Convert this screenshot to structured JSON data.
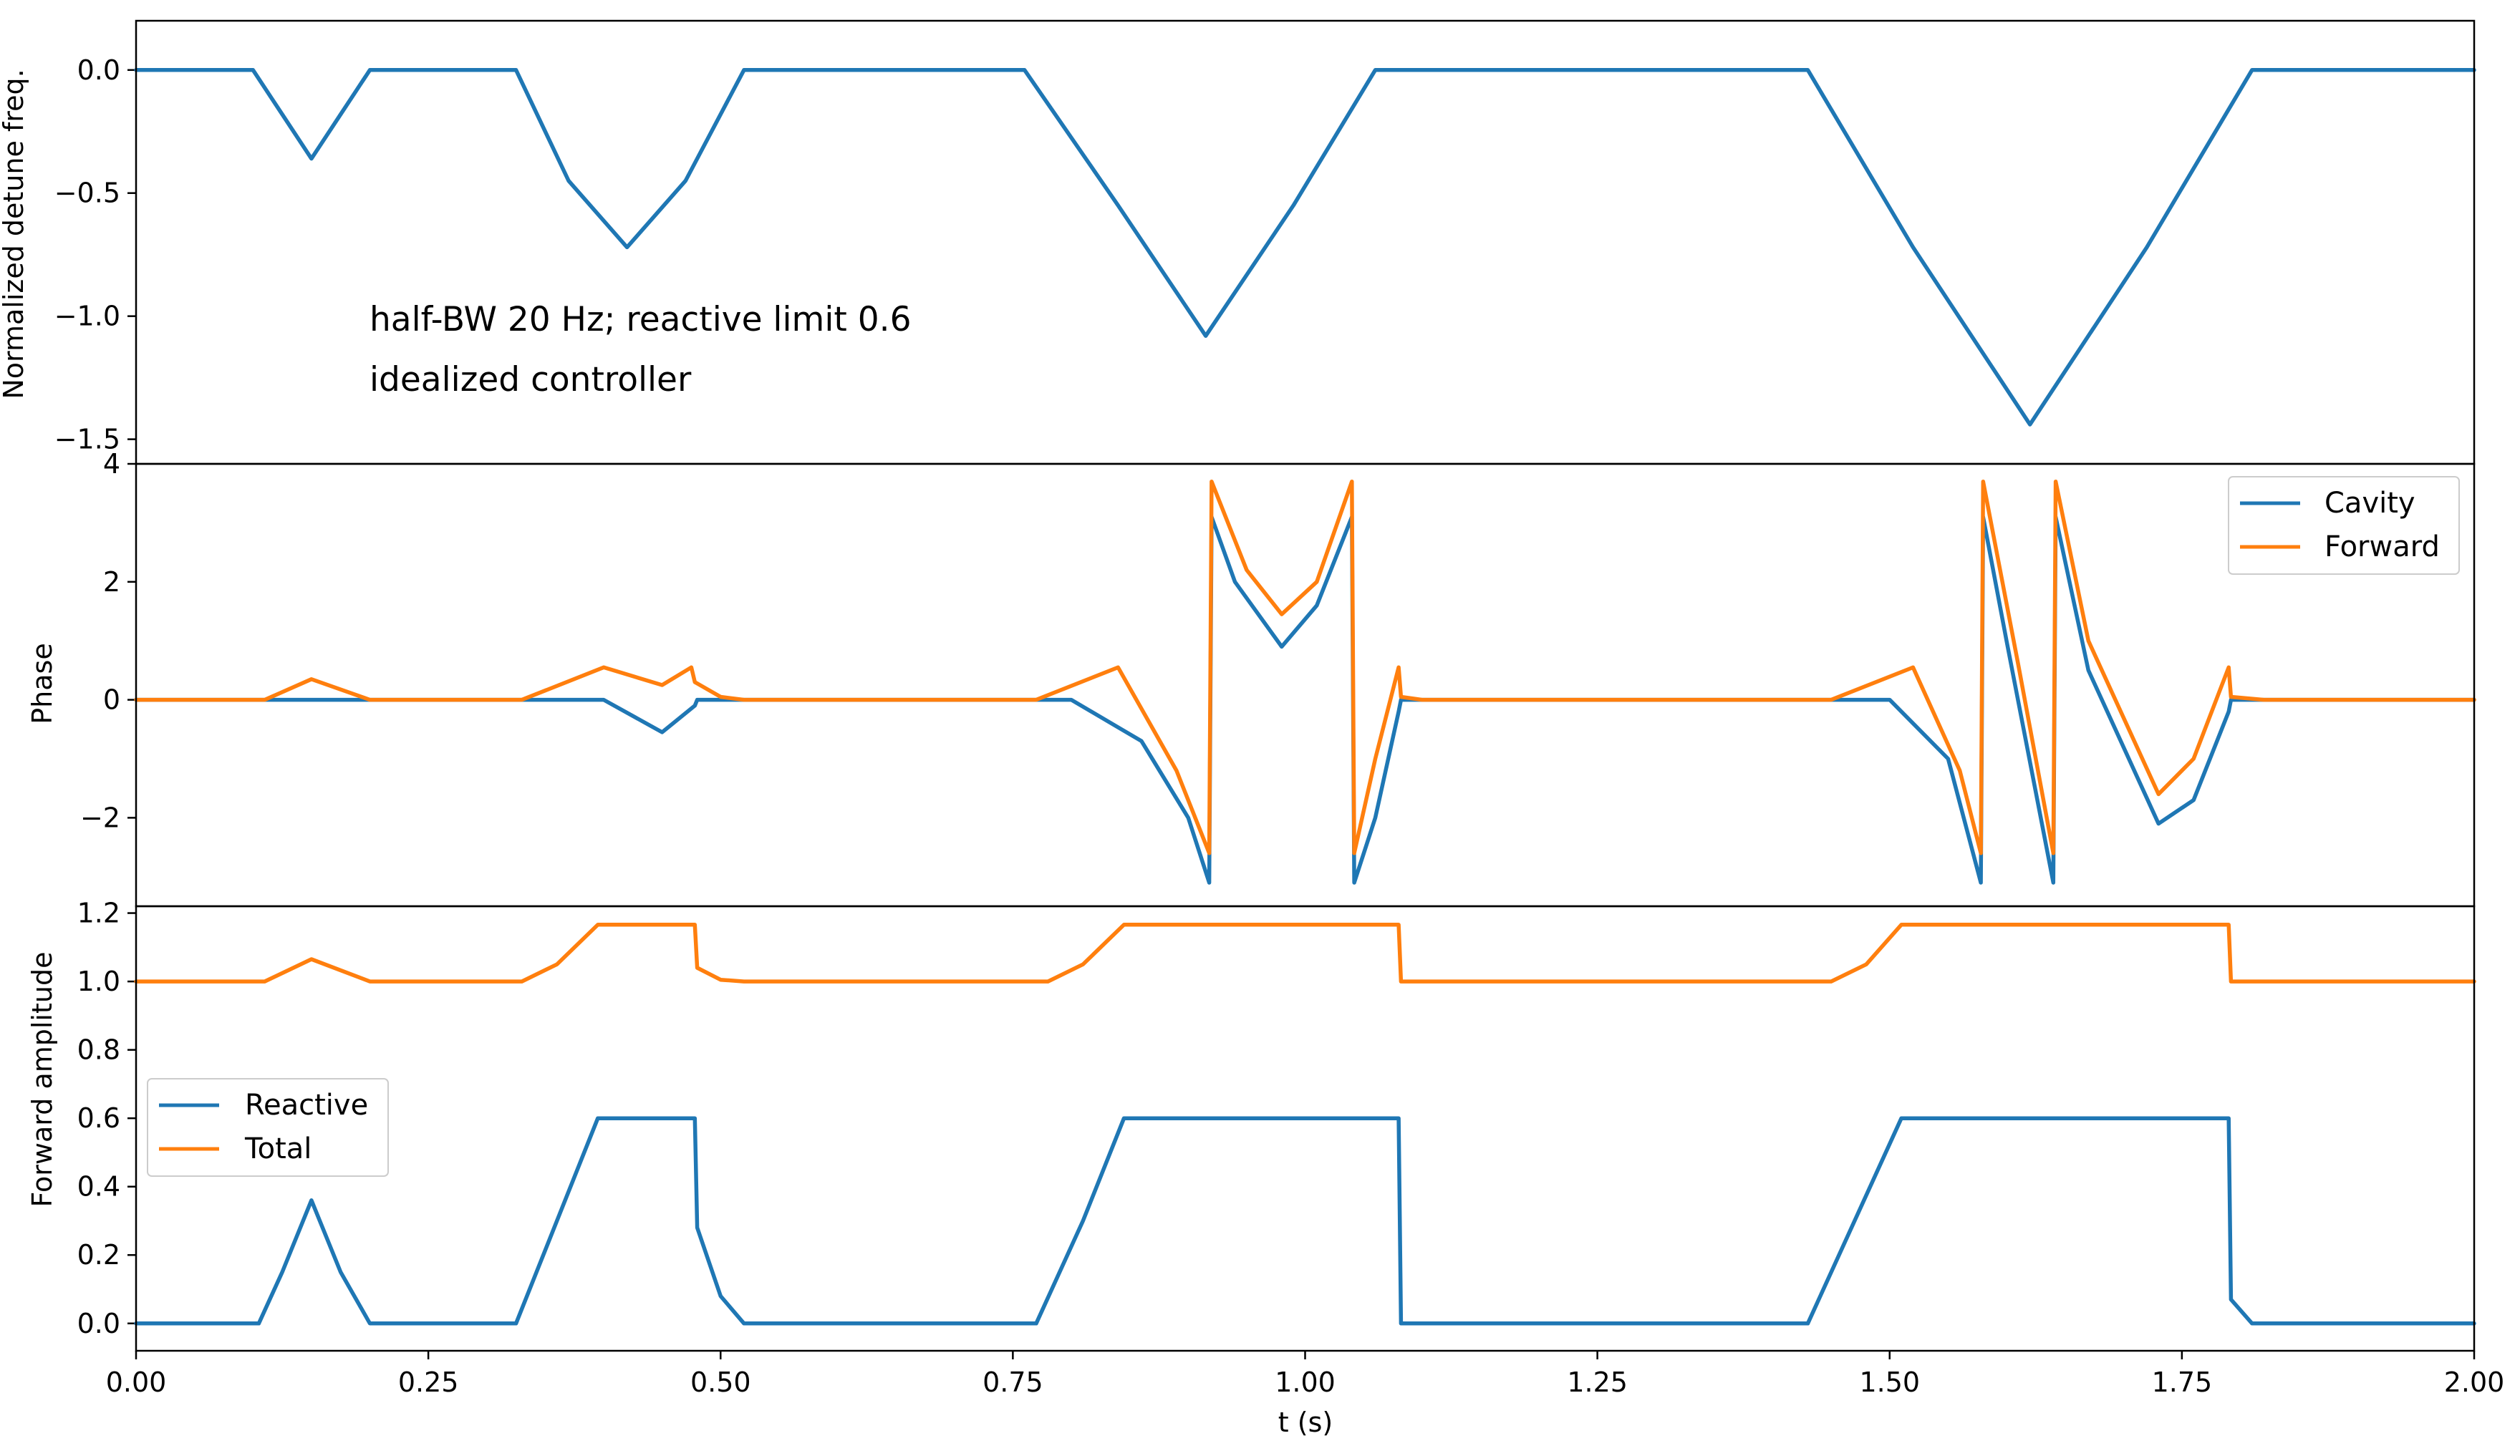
{
  "chart_data": [
    {
      "type": "line",
      "ylabel": "Normalized detune freq.",
      "xlim": [
        0,
        2
      ],
      "ylim": [
        -1.6,
        0.2
      ],
      "yticks": [
        0.0,
        -0.5,
        -1.0,
        -1.5
      ],
      "ytick_labels": [
        "0.0",
        "−0.5",
        "−1.0",
        "−1.5"
      ],
      "annotations": [
        "half-BW 20 Hz; reactive limit 0.6",
        "idealized controller"
      ],
      "series": [
        {
          "color": "#1f77b4",
          "points": [
            [
              0,
              0
            ],
            [
              0.1,
              0
            ],
            [
              0.125,
              -0.18
            ],
            [
              0.15,
              -0.36
            ],
            [
              0.175,
              -0.18
            ],
            [
              0.2,
              0
            ],
            [
              0.325,
              0
            ],
            [
              0.37,
              -0.45
            ],
            [
              0.42,
              -0.72
            ],
            [
              0.47,
              -0.45
            ],
            [
              0.52,
              0
            ],
            [
              0.76,
              0
            ],
            [
              0.84,
              -0.55
            ],
            [
              0.915,
              -1.08
            ],
            [
              0.99,
              -0.55
            ],
            [
              1.06,
              0
            ],
            [
              1.43,
              0
            ],
            [
              1.52,
              -0.72
            ],
            [
              1.62,
              -1.44
            ],
            [
              1.72,
              -0.72
            ],
            [
              1.81,
              0
            ],
            [
              2,
              0
            ]
          ]
        }
      ]
    },
    {
      "type": "line",
      "ylabel": "Phase",
      "xlim": [
        0,
        2
      ],
      "ylim": [
        -3.5,
        4
      ],
      "yticks": [
        4,
        2,
        0,
        -2
      ],
      "ytick_labels": [
        "4",
        "2",
        "0",
        "−2"
      ],
      "legend": "top-right",
      "series": [
        {
          "name": "Cavity",
          "color": "#1f77b4",
          "points": [
            [
              0,
              0
            ],
            [
              0.4,
              0
            ],
            [
              0.45,
              -0.55
            ],
            [
              0.478,
              -0.1
            ],
            [
              0.48,
              0
            ],
            [
              0.8,
              0
            ],
            [
              0.86,
              -0.7
            ],
            [
              0.9,
              -2.0
            ],
            [
              0.918,
              -3.1
            ],
            [
              0.92,
              3.1
            ],
            [
              0.94,
              2.0
            ],
            [
              0.98,
              0.9
            ],
            [
              1.01,
              1.6
            ],
            [
              1.04,
              3.1
            ],
            [
              1.042,
              -3.1
            ],
            [
              1.06,
              -2.0
            ],
            [
              1.08,
              -0.2
            ],
            [
              1.082,
              0
            ],
            [
              1.5,
              0
            ],
            [
              1.55,
              -1.0
            ],
            [
              1.578,
              -3.1
            ],
            [
              1.58,
              3.1
            ],
            [
              1.6,
              1.0
            ],
            [
              1.64,
              -3.1
            ],
            [
              1.642,
              3.1
            ],
            [
              1.67,
              0.5
            ],
            [
              1.73,
              -2.1
            ],
            [
              1.76,
              -1.7
            ],
            [
              1.79,
              -0.2
            ],
            [
              1.792,
              0
            ],
            [
              2,
              0
            ]
          ]
        },
        {
          "name": "Forward",
          "color": "#ff7f0e",
          "points": [
            [
              0,
              0
            ],
            [
              0.11,
              0
            ],
            [
              0.15,
              0.35
            ],
            [
              0.2,
              0
            ],
            [
              0.33,
              0
            ],
            [
              0.4,
              0.55
            ],
            [
              0.45,
              0.25
            ],
            [
              0.475,
              0.55
            ],
            [
              0.478,
              0.3
            ],
            [
              0.5,
              0.05
            ],
            [
              0.52,
              0
            ],
            [
              0.77,
              0
            ],
            [
              0.84,
              0.55
            ],
            [
              0.89,
              -1.2
            ],
            [
              0.918,
              -2.6
            ],
            [
              0.92,
              3.7
            ],
            [
              0.95,
              2.2
            ],
            [
              0.98,
              1.45
            ],
            [
              1.01,
              2.0
            ],
            [
              1.04,
              3.7
            ],
            [
              1.042,
              -2.6
            ],
            [
              1.06,
              -1.0
            ],
            [
              1.08,
              0.55
            ],
            [
              1.082,
              0.05
            ],
            [
              1.1,
              0
            ],
            [
              1.45,
              0
            ],
            [
              1.52,
              0.55
            ],
            [
              1.56,
              -1.2
            ],
            [
              1.578,
              -2.6
            ],
            [
              1.58,
              3.7
            ],
            [
              1.61,
              0.6
            ],
            [
              1.64,
              -2.6
            ],
            [
              1.642,
              3.7
            ],
            [
              1.67,
              1.0
            ],
            [
              1.73,
              -1.6
            ],
            [
              1.76,
              -1.0
            ],
            [
              1.79,
              0.55
            ],
            [
              1.792,
              0.05
            ],
            [
              1.82,
              0
            ],
            [
              2,
              0
            ]
          ]
        }
      ]
    },
    {
      "type": "line",
      "ylabel": "Forward amplitude",
      "xlabel": "t (s)",
      "xlim": [
        0,
        2
      ],
      "ylim": [
        -0.08,
        1.22
      ],
      "yticks": [
        0.0,
        0.2,
        0.4,
        0.6,
        0.8,
        1.0,
        1.2
      ],
      "ytick_labels": [
        "0.0",
        "0.2",
        "0.4",
        "0.6",
        "0.8",
        "1.0",
        "1.2"
      ],
      "xticks": [
        0.0,
        0.25,
        0.5,
        0.75,
        1.0,
        1.25,
        1.5,
        1.75,
        2.0
      ],
      "xtick_labels": [
        "0.00",
        "0.25",
        "0.50",
        "0.75",
        "1.00",
        "1.25",
        "1.50",
        "1.75",
        "2.00"
      ],
      "legend": "middle-left",
      "series": [
        {
          "name": "Reactive",
          "color": "#1f77b4",
          "points": [
            [
              0,
              0
            ],
            [
              0.105,
              0
            ],
            [
              0.125,
              0.15
            ],
            [
              0.15,
              0.36
            ],
            [
              0.175,
              0.15
            ],
            [
              0.2,
              0
            ],
            [
              0.325,
              0
            ],
            [
              0.36,
              0.3
            ],
            [
              0.395,
              0.6
            ],
            [
              0.478,
              0.6
            ],
            [
              0.48,
              0.28
            ],
            [
              0.5,
              0.08
            ],
            [
              0.52,
              0
            ],
            [
              0.77,
              0
            ],
            [
              0.81,
              0.3
            ],
            [
              0.845,
              0.6
            ],
            [
              1.08,
              0.6
            ],
            [
              1.082,
              0
            ],
            [
              1.43,
              0
            ],
            [
              1.47,
              0.3
            ],
            [
              1.51,
              0.6
            ],
            [
              1.79,
              0.6
            ],
            [
              1.792,
              0.07
            ],
            [
              1.81,
              0
            ],
            [
              2,
              0
            ]
          ]
        },
        {
          "name": "Total",
          "color": "#ff7f0e",
          "points": [
            [
              0,
              1.0
            ],
            [
              0.11,
              1.0
            ],
            [
              0.15,
              1.065
            ],
            [
              0.2,
              1.0
            ],
            [
              0.33,
              1.0
            ],
            [
              0.36,
              1.05
            ],
            [
              0.395,
              1.166
            ],
            [
              0.478,
              1.166
            ],
            [
              0.48,
              1.04
            ],
            [
              0.5,
              1.005
            ],
            [
              0.52,
              1.0
            ],
            [
              0.78,
              1.0
            ],
            [
              0.81,
              1.05
            ],
            [
              0.845,
              1.166
            ],
            [
              1.08,
              1.166
            ],
            [
              1.082,
              1.0
            ],
            [
              1.45,
              1.0
            ],
            [
              1.48,
              1.05
            ],
            [
              1.51,
              1.166
            ],
            [
              1.79,
              1.166
            ],
            [
              1.792,
              1.0
            ],
            [
              2,
              1.0
            ]
          ]
        }
      ]
    }
  ]
}
